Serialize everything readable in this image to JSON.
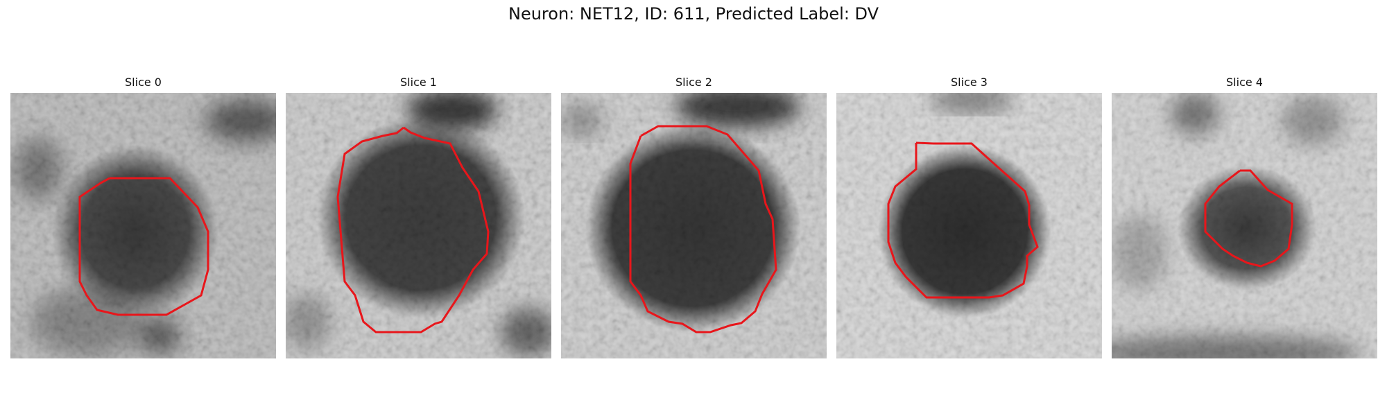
{
  "figure": {
    "title": "Neuron: NET12, ID: 611, Predicted Label: DV",
    "outline_color": "#e8161b",
    "panels": [
      {
        "title": "Slice 0"
      },
      {
        "title": "Slice 1"
      },
      {
        "title": "Slice 2"
      },
      {
        "title": "Slice 3"
      },
      {
        "title": "Slice 4"
      }
    ]
  }
}
